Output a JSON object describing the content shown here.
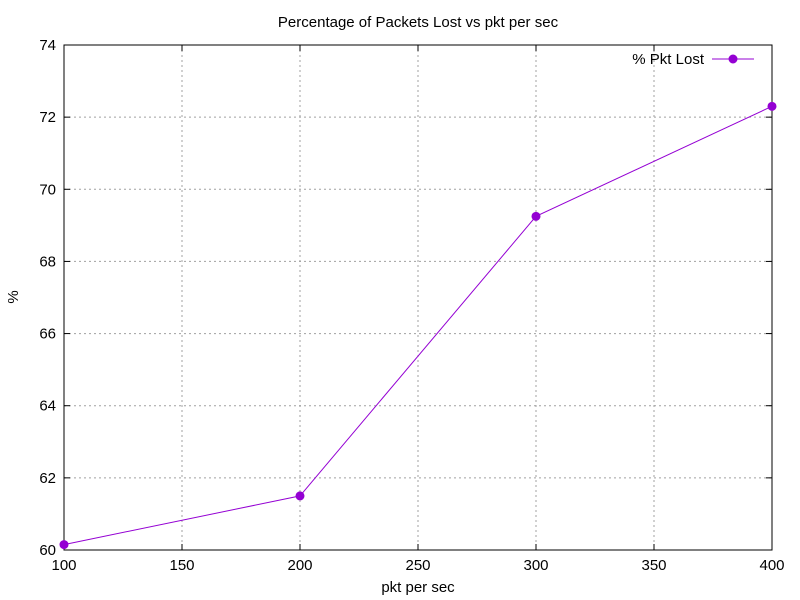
{
  "chart_data": {
    "type": "line",
    "title": "Percentage of Packets Lost vs pkt per sec",
    "xlabel": "pkt per sec",
    "ylabel": "%",
    "xlim": [
      100,
      400
    ],
    "ylim": [
      60,
      74
    ],
    "x_ticks": [
      100,
      150,
      200,
      250,
      300,
      350,
      400
    ],
    "y_ticks": [
      60,
      62,
      64,
      66,
      68,
      70,
      72,
      74
    ],
    "grid": true,
    "legend_position": "top-right",
    "series": [
      {
        "name": "% Pkt Lost",
        "color": "#9400d3",
        "marker": "circle",
        "x": [
          100,
          200,
          300,
          400
        ],
        "y": [
          60.15,
          61.5,
          69.25,
          72.3
        ]
      }
    ]
  }
}
